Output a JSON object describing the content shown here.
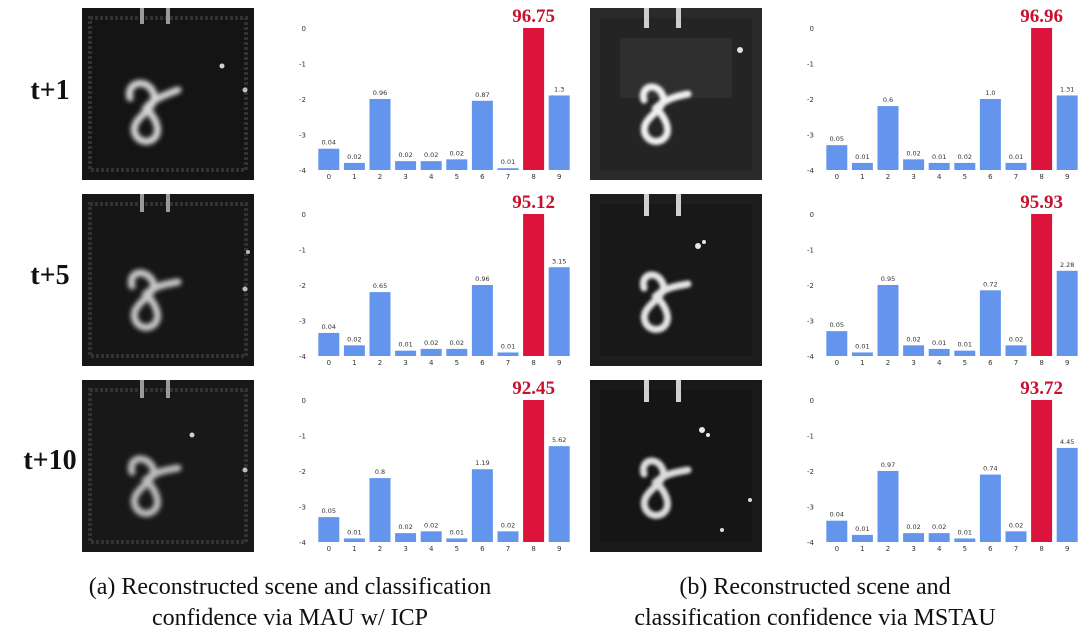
{
  "rows": [
    {
      "label": "t+1"
    },
    {
      "label": "t+5"
    },
    {
      "label": "t+10"
    }
  ],
  "captions": {
    "a": {
      "line1": "(a) Reconstructed scene and classification",
      "line2": "confidence via MAU w/ ICP"
    },
    "b": {
      "line1": "(b) Reconstructed scene and",
      "line2": "classification confidence via MSTAU"
    }
  },
  "colors": {
    "bar": "#6495ED",
    "highlight": "#DC143C",
    "highlight_label": "#C8102E"
  },
  "chart_data": [
    {
      "type": "bar",
      "panel": "a",
      "row": "t+1",
      "categories": [
        "0",
        "1",
        "2",
        "3",
        "4",
        "5",
        "6",
        "7",
        "8",
        "9"
      ],
      "values": [
        -3.4,
        -3.8,
        -2.0,
        -3.75,
        -3.75,
        -3.7,
        -2.05,
        -3.95,
        0,
        -1.9
      ],
      "bar_labels": [
        "0.04",
        "0.02",
        "0.96",
        "0.02",
        "0.02",
        "0.02",
        "0.87",
        "0.01",
        "96.75",
        "1.3"
      ],
      "highlight_index": 8,
      "y_ticks": [
        "0",
        "-1",
        "-2",
        "-3",
        "-4"
      ],
      "ylim": [
        -4,
        0
      ]
    },
    {
      "type": "bar",
      "panel": "a",
      "row": "t+5",
      "categories": [
        "0",
        "1",
        "2",
        "3",
        "4",
        "5",
        "6",
        "7",
        "8",
        "9"
      ],
      "values": [
        -3.35,
        -3.7,
        -2.2,
        -3.85,
        -3.8,
        -3.8,
        -2.0,
        -3.9,
        0,
        -1.5
      ],
      "bar_labels": [
        "0.04",
        "0.02",
        "0.65",
        "0.01",
        "0.02",
        "0.02",
        "0.96",
        "0.01",
        "95.12",
        "3.15"
      ],
      "highlight_index": 8,
      "y_ticks": [
        "0",
        "-1",
        "-2",
        "-3",
        "-4"
      ],
      "ylim": [
        -4,
        0
      ]
    },
    {
      "type": "bar",
      "panel": "a",
      "row": "t+10",
      "categories": [
        "0",
        "1",
        "2",
        "3",
        "4",
        "5",
        "6",
        "7",
        "8",
        "9"
      ],
      "values": [
        -3.3,
        -3.9,
        -2.2,
        -3.75,
        -3.7,
        -3.9,
        -1.95,
        -3.7,
        0,
        -1.3
      ],
      "bar_labels": [
        "0.05",
        "0.01",
        "0.8",
        "0.02",
        "0.02",
        "0.01",
        "1.19",
        "0.02",
        "92.45",
        "5.62"
      ],
      "highlight_index": 8,
      "y_ticks": [
        "0",
        "-1",
        "-2",
        "-3",
        "-4"
      ],
      "ylim": [
        -4,
        0
      ]
    },
    {
      "type": "bar",
      "panel": "b",
      "row": "t+1",
      "categories": [
        "0",
        "1",
        "2",
        "3",
        "4",
        "5",
        "6",
        "7",
        "8",
        "9"
      ],
      "values": [
        -3.3,
        -3.8,
        -2.2,
        -3.7,
        -3.8,
        -3.8,
        -2.0,
        -3.8,
        0,
        -1.9
      ],
      "bar_labels": [
        "0.05",
        "0.01",
        "0.6",
        "0.02",
        "0.01",
        "0.02",
        "1.0",
        "0.01",
        "96.96",
        "1.31"
      ],
      "highlight_index": 8,
      "y_ticks": [
        "0",
        "-1",
        "-2",
        "-3",
        "-4"
      ],
      "ylim": [
        -4,
        0
      ]
    },
    {
      "type": "bar",
      "panel": "b",
      "row": "t+5",
      "categories": [
        "0",
        "1",
        "2",
        "3",
        "4",
        "5",
        "6",
        "7",
        "8",
        "9"
      ],
      "values": [
        -3.3,
        -3.9,
        -2.0,
        -3.7,
        -3.8,
        -3.85,
        -2.15,
        -3.7,
        0,
        -1.6
      ],
      "bar_labels": [
        "0.05",
        "0.01",
        "0.95",
        "0.02",
        "0.01",
        "0.01",
        "0.72",
        "0.02",
        "95.93",
        "2.28"
      ],
      "highlight_index": 8,
      "y_ticks": [
        "0",
        "-1",
        "-2",
        "-3",
        "-4"
      ],
      "ylim": [
        -4,
        0
      ]
    },
    {
      "type": "bar",
      "panel": "b",
      "row": "t+10",
      "categories": [
        "0",
        "1",
        "2",
        "3",
        "4",
        "5",
        "6",
        "7",
        "8",
        "9"
      ],
      "values": [
        -3.4,
        -3.8,
        -2.0,
        -3.75,
        -3.75,
        -3.9,
        -2.1,
        -3.7,
        0,
        -1.35
      ],
      "bar_labels": [
        "0.04",
        "0.01",
        "0.97",
        "0.02",
        "0.02",
        "0.01",
        "0.74",
        "0.02",
        "93.72",
        "4.45"
      ],
      "highlight_index": 8,
      "y_ticks": [
        "0",
        "-1",
        "-2",
        "-3",
        "-4"
      ],
      "ylim": [
        -4,
        0
      ]
    }
  ]
}
